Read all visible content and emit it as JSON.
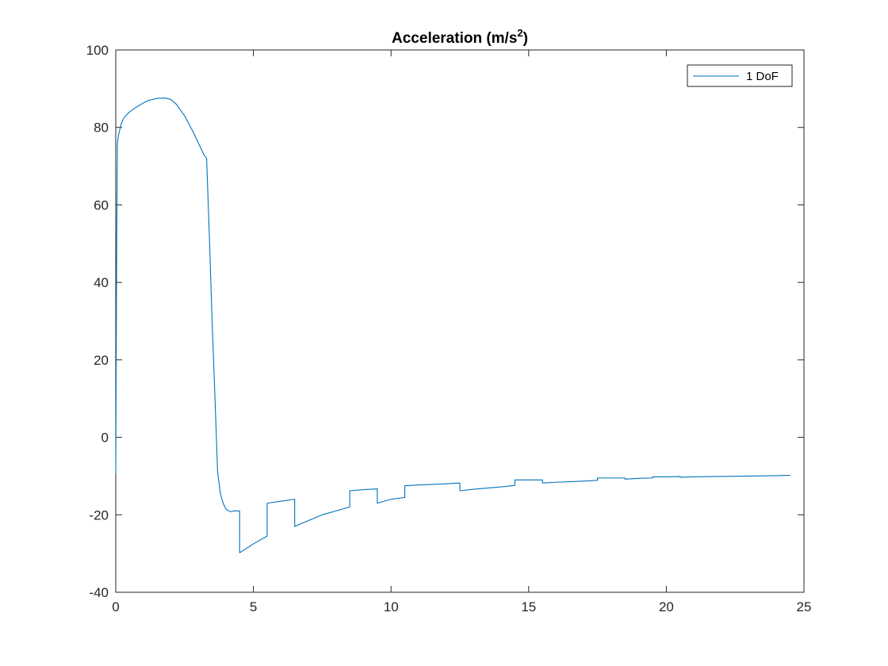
{
  "chart_data": {
    "type": "line",
    "title": "Acceleration (m/s",
    "title_superscript": "2",
    "title_suffix": ")",
    "xlabel": "",
    "ylabel": "",
    "xlim": [
      0,
      25
    ],
    "ylim": [
      -40,
      100
    ],
    "x_ticks": [
      0,
      5,
      10,
      15,
      20,
      25
    ],
    "x_tick_labels": [
      "0",
      "5",
      "10",
      "15",
      "20",
      "25"
    ],
    "y_ticks": [
      -40,
      -20,
      0,
      20,
      40,
      60,
      80,
      100
    ],
    "y_tick_labels": [
      "-40",
      "-20",
      "0",
      "20",
      "40",
      "60",
      "80",
      "100"
    ],
    "grid": false,
    "legend_position": "top-right",
    "line_color": "#0072BD",
    "series": [
      {
        "name": "1 DoF",
        "x": [
          0,
          0.03,
          0.06,
          0.1,
          0.2,
          0.3,
          0.5,
          0.8,
          1.0,
          1.2,
          1.5,
          1.8,
          2.0,
          2.2,
          2.5,
          2.8,
          3.0,
          3.2,
          3.3,
          3.4,
          3.5,
          3.6,
          3.7,
          3.8,
          3.9,
          4.0,
          4.1,
          4.2,
          4.3,
          4.4,
          4.5,
          4.5,
          5.0,
          5.5,
          5.5,
          6.0,
          6.5,
          6.5,
          7.0,
          7.5,
          8.0,
          8.5,
          8.5,
          9.0,
          9.5,
          9.5,
          10.0,
          10.5,
          10.5,
          11.0,
          12.0,
          12.5,
          12.5,
          13.0,
          14.0,
          14.5,
          14.5,
          15.0,
          15.5,
          15.5,
          16.0,
          17.0,
          17.5,
          17.5,
          18.0,
          18.5,
          18.5,
          19.0,
          19.5,
          19.5,
          20.0,
          20.5,
          20.5,
          21.0,
          22.0,
          23.0,
          24.0,
          24.5
        ],
        "values": [
          -9.5,
          45,
          76,
          78,
          81,
          82.5,
          84,
          85.5,
          86.3,
          87,
          87.5,
          87.6,
          87.2,
          86,
          83,
          79,
          76,
          73,
          72,
          52,
          30,
          11,
          -9,
          -14.5,
          -17,
          -18.5,
          -19,
          -19.2,
          -19,
          -19,
          -19,
          -29.8,
          -27.5,
          -25.5,
          -17,
          -16.5,
          -16,
          -23,
          -21.5,
          -20,
          -19,
          -18,
          -13.8,
          -13.5,
          -13.3,
          -17,
          -16,
          -15.5,
          -12.5,
          -12.3,
          -12,
          -11.8,
          -13.8,
          -13.4,
          -12.8,
          -12.4,
          -11,
          -11,
          -11,
          -11.8,
          -11.6,
          -11.3,
          -11.1,
          -10.5,
          -10.5,
          -10.5,
          -10.8,
          -10.6,
          -10.5,
          -10.2,
          -10.2,
          -10.1,
          -10.3,
          -10.2,
          -10.1,
          -10.0,
          -9.9,
          -9.8
        ]
      }
    ]
  }
}
